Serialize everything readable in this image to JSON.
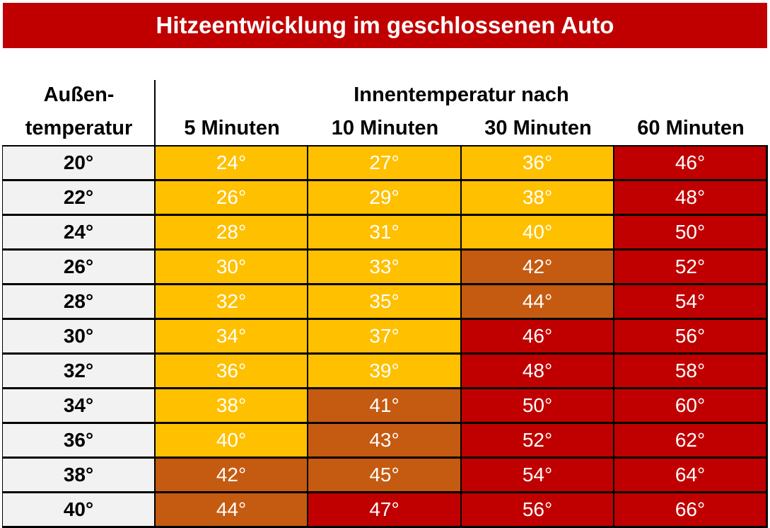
{
  "title": "Hitzeentwicklung im geschlossenen Auto",
  "header": {
    "row_header": [
      "Außen-",
      "temperatur"
    ],
    "group_header": "Innentemperatur nach",
    "columns": [
      "5 Minuten",
      "10 Minuten",
      "30 Minuten",
      "60 Minuten"
    ]
  },
  "row_header_color": "#F2F2F2",
  "rows": [
    {
      "label": "20°",
      "cells": [
        "24°",
        "27°",
        "36°",
        "46°"
      ],
      "colors": [
        "#FFC000",
        "#FFC000",
        "#FFC000",
        "#C00000"
      ]
    },
    {
      "label": "22°",
      "cells": [
        "26°",
        "29°",
        "38°",
        "48°"
      ],
      "colors": [
        "#FFC000",
        "#FFC000",
        "#FFC000",
        "#C00000"
      ]
    },
    {
      "label": "24°",
      "cells": [
        "28°",
        "31°",
        "40°",
        "50°"
      ],
      "colors": [
        "#FFC000",
        "#FFC000",
        "#FFC000",
        "#C00000"
      ]
    },
    {
      "label": "26°",
      "cells": [
        "30°",
        "33°",
        "42°",
        "52°"
      ],
      "colors": [
        "#FFC000",
        "#FFC000",
        "#C55A11",
        "#C00000"
      ]
    },
    {
      "label": "28°",
      "cells": [
        "32°",
        "35°",
        "44°",
        "54°"
      ],
      "colors": [
        "#FFC000",
        "#FFC000",
        "#C55A11",
        "#C00000"
      ]
    },
    {
      "label": "30°",
      "cells": [
        "34°",
        "37°",
        "46°",
        "56°"
      ],
      "colors": [
        "#FFC000",
        "#FFC000",
        "#C00000",
        "#C00000"
      ]
    },
    {
      "label": "32°",
      "cells": [
        "36°",
        "39°",
        "48°",
        "58°"
      ],
      "colors": [
        "#FFC000",
        "#FFC000",
        "#C00000",
        "#C00000"
      ]
    },
    {
      "label": "34°",
      "cells": [
        "38°",
        "41°",
        "50°",
        "60°"
      ],
      "colors": [
        "#FFC000",
        "#C55A11",
        "#C00000",
        "#C00000"
      ]
    },
    {
      "label": "36°",
      "cells": [
        "40°",
        "43°",
        "52°",
        "62°"
      ],
      "colors": [
        "#FFC000",
        "#C55A11",
        "#C00000",
        "#C00000"
      ]
    },
    {
      "label": "38°",
      "cells": [
        "42°",
        "45°",
        "54°",
        "64°"
      ],
      "colors": [
        "#C55A11",
        "#C55A11",
        "#C00000",
        "#C00000"
      ]
    },
    {
      "label": "40°",
      "cells": [
        "44°",
        "47°",
        "56°",
        "66°"
      ],
      "colors": [
        "#C55A11",
        "#C00000",
        "#C00000",
        "#C00000"
      ]
    }
  ]
}
